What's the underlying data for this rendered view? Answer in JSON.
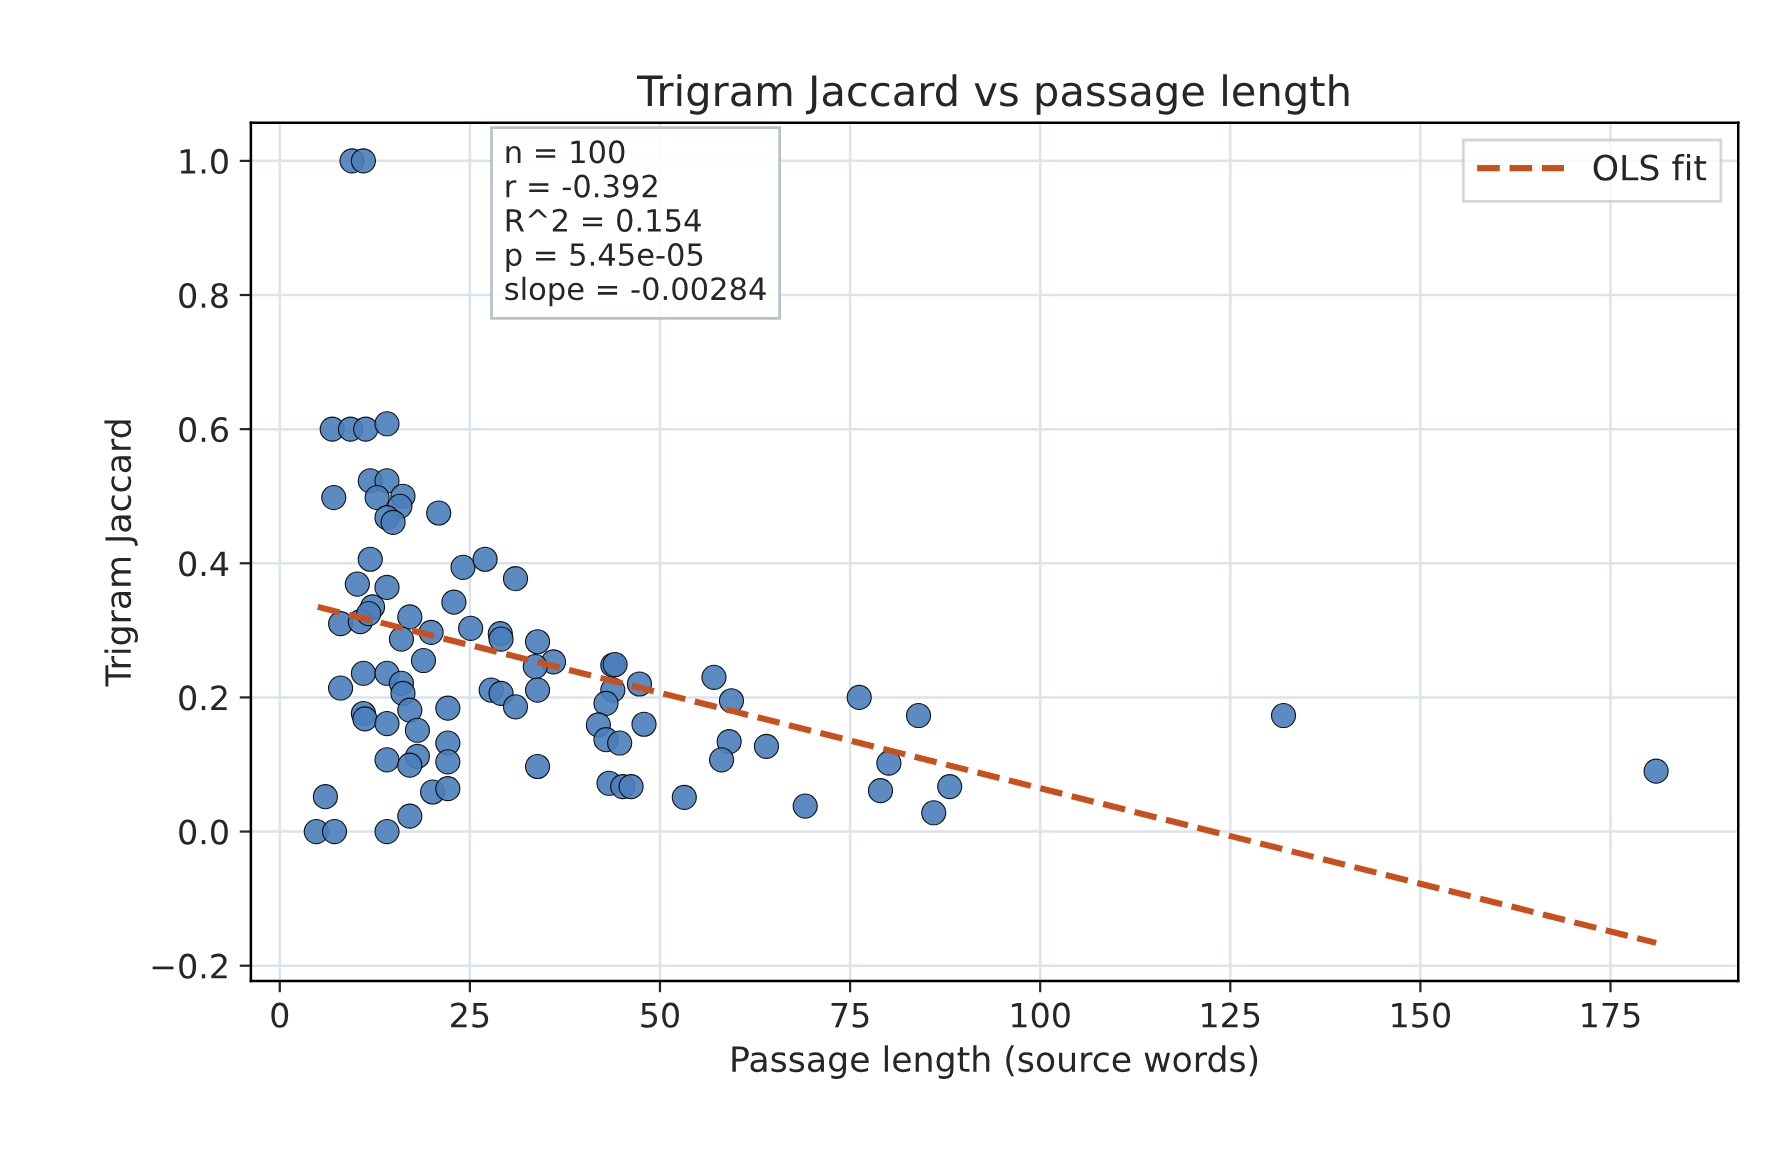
{
  "chart_data": {
    "type": "scatter",
    "title": "Trigram Jaccard vs passage length",
    "xlabel": "Passage length (source words)",
    "ylabel": "Trigram Jaccard",
    "annotations": [
      "n = 100\nr = -0.392\nR^2 = 0.154\np = 5.45e-05\nslope = -0.00284"
    ],
    "xlim": [
      -3.8,
      191.8
    ],
    "ylim": [
      -0.223,
      1.057
    ],
    "xticks": [
      0,
      25,
      50,
      75,
      100,
      125,
      150,
      175
    ],
    "yticks": [
      {
        "value": -0.2,
        "label": "−0.2"
      },
      {
        "value": 0.0,
        "label": "0.0"
      },
      {
        "value": 0.2,
        "label": "0.2"
      },
      {
        "value": 0.4,
        "label": "0.4"
      },
      {
        "value": 0.6,
        "label": "0.6"
      },
      {
        "value": 0.8,
        "label": "0.8"
      },
      {
        "value": 1.0,
        "label": "1.0"
      }
    ],
    "grid": true,
    "legend": "top right",
    "series": [
      {
        "marker": "circle",
        "color": "#4a7ebb",
        "x": [
          6.9,
          9.3,
          11.3,
          14.1,
          11.9,
          14.1,
          7.1,
          12.8,
          16.2,
          15.8,
          14.1,
          14.9,
          20.9,
          11.9,
          24.1,
          27.0,
          31.0,
          10.2,
          14.1,
          12.2,
          22.9,
          17.1,
          8.0,
          10.6,
          11.7,
          16.0,
          19.9,
          18.9,
          25.1,
          29.0,
          29.1,
          33.9,
          36.0,
          33.6,
          43.8,
          43.8,
          11.0,
          14.1,
          16.0,
          8.0,
          16.2,
          27.8,
          29.1,
          31.0,
          33.9,
          22.1,
          11.0,
          11.2,
          14.1,
          17.1,
          18.1,
          42.9,
          41.9,
          42.9,
          44.7,
          14.1,
          18.1,
          17.1,
          22.1,
          22.1,
          33.9,
          20.1,
          22.1,
          43.3,
          45.1,
          6.0,
          17.1,
          4.8,
          7.2,
          14.1,
          44.1,
          47.3,
          47.9,
          46.2,
          53.2,
          57.1,
          59.4,
          59.1,
          58.1,
          64.0,
          69.1,
          76.2,
          84.0,
          80.1,
          79.0,
          88.1,
          86.0,
          132.0,
          181.0,
          9.5,
          11.0
        ],
        "values": [
          0.6,
          0.6,
          0.6,
          0.608,
          0.523,
          0.523,
          0.498,
          0.498,
          0.5,
          0.485,
          0.468,
          0.461,
          0.475,
          0.406,
          0.394,
          0.406,
          0.377,
          0.369,
          0.364,
          0.335,
          0.342,
          0.32,
          0.31,
          0.313,
          0.325,
          0.287,
          0.297,
          0.255,
          0.303,
          0.295,
          0.287,
          0.283,
          0.253,
          0.246,
          0.248,
          0.211,
          0.236,
          0.236,
          0.221,
          0.214,
          0.206,
          0.211,
          0.206,
          0.186,
          0.211,
          0.184,
          0.176,
          0.168,
          0.161,
          0.181,
          0.151,
          0.191,
          0.159,
          0.137,
          0.132,
          0.107,
          0.112,
          0.099,
          0.132,
          0.104,
          0.097,
          0.059,
          0.064,
          0.072,
          0.067,
          0.052,
          0.023,
          0.0,
          0.0,
          0.0,
          0.249,
          0.22,
          0.16,
          0.067,
          0.051,
          0.23,
          0.195,
          0.134,
          0.107,
          0.127,
          0.038,
          0.2,
          0.173,
          0.102,
          0.061,
          0.067,
          0.028,
          0.173,
          0.09,
          1.0,
          1.0
        ]
      },
      {
        "type": "line",
        "name": "OLS fit",
        "color": "#c9501c",
        "line_style": "dashed",
        "x": [
          5,
          181
        ],
        "values": [
          0.335,
          -0.166
        ]
      }
    ]
  }
}
